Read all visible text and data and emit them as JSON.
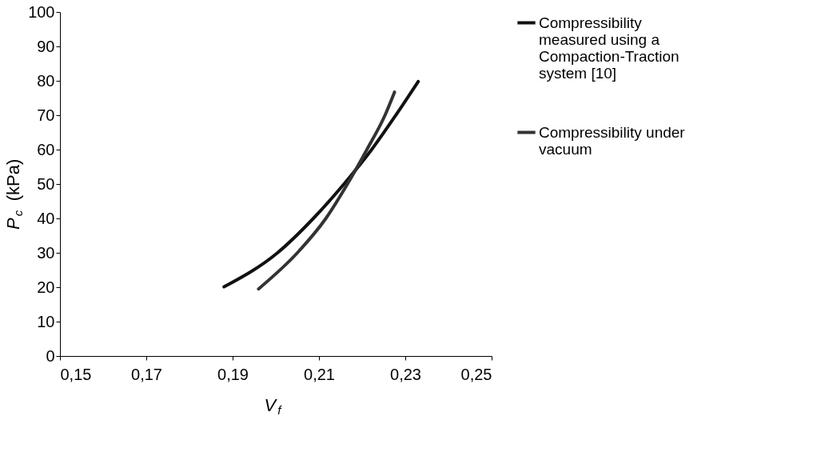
{
  "chart_data": {
    "type": "line",
    "xlabel": "V$_{f}$",
    "ylabel": "P$_{c}$ (kPa)",
    "xlim": [
      0.15,
      0.25
    ],
    "xticks": [
      {
        "value": 0.15,
        "label": "0,15"
      },
      {
        "value": 0.17,
        "label": "0,17"
      },
      {
        "value": 0.19,
        "label": "0,19"
      },
      {
        "value": 0.21,
        "label": "0,21"
      },
      {
        "value": 0.23,
        "label": "0,23"
      },
      {
        "value": 0.25,
        "label": "0,25"
      }
    ],
    "ylim": [
      0,
      100
    ],
    "yticks": [
      0,
      10,
      20,
      30,
      40,
      50,
      60,
      70,
      80,
      90,
      100
    ],
    "grid": false,
    "legend": "right",
    "marker": "none",
    "line_style": "solid",
    "series": [
      {
        "name": "Compressibility measured using a Compaction-Traction system [10]",
        "color": "#111111",
        "x": [
          0.188,
          0.2004,
          0.2087,
          0.2158,
          0.2222,
          0.2278,
          0.233
        ],
        "values": [
          20.1,
          30,
          40,
          50,
          60,
          70,
          79.8
        ]
      },
      {
        "name": "Compressibility under vacuum",
        "color": "#333333",
        "x": [
          0.196,
          0.205,
          0.2116,
          0.2166,
          0.2211,
          0.2253,
          0.2275
        ],
        "values": [
          19.5,
          30,
          40,
          50,
          60,
          70,
          76.7
        ]
      }
    ]
  }
}
